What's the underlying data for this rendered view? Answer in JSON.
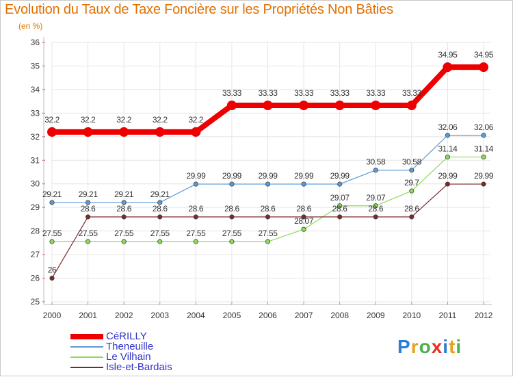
{
  "chart_data": {
    "type": "line",
    "title": "Evolution du Taux de Taxe Foncière sur les Propriétés Non Bâties",
    "ylabel": "(en %)",
    "xlabel": "",
    "ylim": [
      25,
      36
    ],
    "yticks": [
      "25",
      "26",
      "27",
      "28",
      "29",
      "30",
      "31",
      "32",
      "33",
      "34",
      "35",
      "36"
    ],
    "categories": [
      "2000",
      "2001",
      "2002",
      "2003",
      "2004",
      "2005",
      "2006",
      "2007",
      "2008",
      "2009",
      "2010",
      "2011",
      "2012"
    ],
    "grid": true,
    "legend_position": "bottom-left",
    "series": [
      {
        "name": "CéRILLY",
        "color": "#ee0000",
        "values": [
          32.2,
          32.2,
          32.2,
          32.2,
          32.2,
          33.33,
          33.33,
          33.33,
          33.33,
          33.33,
          33.33,
          34.95,
          34.95
        ],
        "labels": [
          "32.2",
          "32.2",
          "32.2",
          "32.2",
          "32.2",
          "33.33",
          "33.33",
          "33.33",
          "33.33",
          "33.33",
          "33.33",
          "34.95",
          "34.95"
        ]
      },
      {
        "name": "Theneuille",
        "color": "#5b9bd5",
        "values": [
          29.21,
          29.21,
          29.21,
          29.21,
          29.99,
          29.99,
          29.99,
          29.99,
          29.99,
          30.58,
          30.58,
          32.06,
          32.06
        ],
        "labels": [
          "29.21",
          "29.21",
          "29.21",
          "29.21",
          "29.99",
          "29.99",
          "29.99",
          "29.99",
          "29.99",
          "30.58",
          "30.58",
          "32.06",
          "32.06"
        ]
      },
      {
        "name": "Le Vilhain",
        "color": "#8ed95a",
        "values": [
          27.55,
          27.55,
          27.55,
          27.55,
          27.55,
          27.55,
          27.55,
          28.07,
          29.07,
          29.07,
          29.7,
          31.14,
          31.14
        ],
        "labels": [
          "27.55",
          "27.55",
          "27.55",
          "27.55",
          "27.55",
          "27.55",
          "27.55",
          "28.07",
          "29.07",
          "29.07",
          "29.7",
          "31.14",
          "31.14"
        ]
      },
      {
        "name": "Isle-et-Bardais",
        "color": "#7a2a2a",
        "values": [
          26,
          28.6,
          28.6,
          28.6,
          28.6,
          28.6,
          28.6,
          28.6,
          28.6,
          28.6,
          28.6,
          29.99,
          29.99
        ],
        "labels": [
          "26",
          "28.6",
          "28.6",
          "28.6",
          "28.6",
          "28.6",
          "28.6",
          "28.6",
          "28.6",
          "28.6",
          "28.6",
          "29.99",
          "29.99"
        ]
      }
    ]
  },
  "logo": {
    "letters": [
      {
        "ch": "P",
        "color": "#2a7fd4"
      },
      {
        "ch": "r",
        "color": "#e8a020"
      },
      {
        "ch": "o",
        "color": "#4caf50"
      },
      {
        "ch": "x",
        "color": "#e83020"
      },
      {
        "ch": "i",
        "color": "#2a7fd4"
      },
      {
        "ch": "t",
        "color": "#e8a020"
      },
      {
        "ch": "i",
        "color": "#4caf50"
      }
    ]
  }
}
